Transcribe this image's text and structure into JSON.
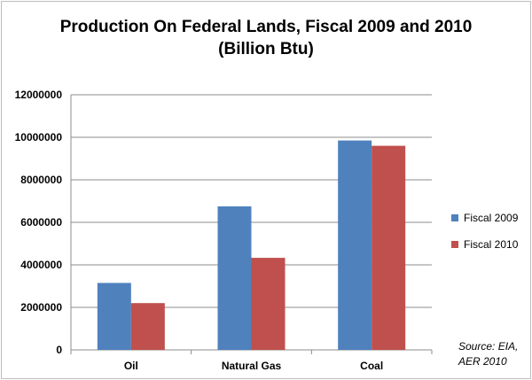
{
  "chart_data": {
    "type": "bar",
    "title_line1": "Production On Federal Lands, Fiscal 2009 and 2010",
    "title_line2": "(Billion Btu)",
    "xlabel": "",
    "ylabel": "",
    "categories": [
      "Oil",
      "Natural Gas",
      "Coal"
    ],
    "series": [
      {
        "name": "Fiscal 2009",
        "color": "#4f81bd",
        "values": [
          3150000,
          6750000,
          9850000
        ]
      },
      {
        "name": "Fiscal 2010",
        "color": "#c0504d",
        "values": [
          2200000,
          4330000,
          9600000
        ]
      }
    ],
    "ylim": [
      0,
      12000000
    ],
    "yticks": [
      "0",
      "2000000",
      "4000000",
      "6000000",
      "8000000",
      "10000000",
      "12000000"
    ],
    "grid": true,
    "legend_position": "right",
    "source_line1": "Source: EIA,",
    "source_line2": "AER 2010"
  }
}
